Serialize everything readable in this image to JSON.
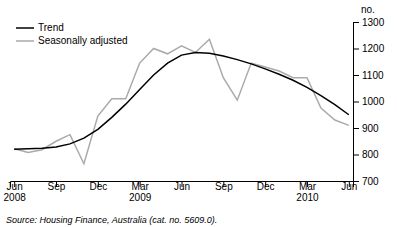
{
  "chart_data": {
    "type": "line",
    "y_label": "no.",
    "annotations": [
      "Source: Housing Finance, Australia (cat. no. 5609.0)."
    ],
    "categories": [
      "Jun\n2008",
      null,
      null,
      "Sep",
      null,
      null,
      "Dec",
      null,
      null,
      "Mar\n2009",
      null,
      null,
      "Jun",
      null,
      null,
      "Sep",
      null,
      null,
      "Dec",
      null,
      null,
      "Mar\n2010",
      null,
      null,
      "Jun"
    ],
    "series": [
      {
        "name": "Trend",
        "color": "#000000",
        "values": [
          820,
          822,
          824,
          828,
          840,
          862,
          895,
          940,
          990,
          1045,
          1100,
          1145,
          1175,
          1185,
          1182,
          1172,
          1158,
          1142,
          1123,
          1103,
          1080,
          1053,
          1022,
          988,
          950
        ]
      },
      {
        "name": "Seasonally adjusted",
        "color": "#aaaaaa",
        "values": [
          822,
          808,
          818,
          850,
          875,
          765,
          945,
          1010,
          1010,
          1145,
          1200,
          1180,
          1210,
          1185,
          1235,
          1090,
          1005,
          1145,
          1130,
          1115,
          1090,
          1090,
          975,
          930,
          910
        ]
      }
    ],
    "ylim": [
      700,
      1300
    ],
    "yticks": [
      700,
      800,
      900,
      1000,
      1100,
      1200,
      1300
    ],
    "grid": false,
    "legend": "upper left"
  }
}
